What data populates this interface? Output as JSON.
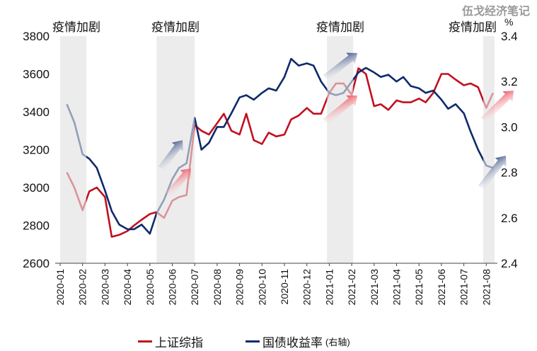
{
  "watermark": "伍戈经济笔记",
  "chart_data": {
    "type": "line",
    "title": "",
    "left_axis": {
      "ylim": [
        2600,
        3800
      ],
      "ticks": [
        2600,
        2800,
        3000,
        3200,
        3400,
        3600,
        3800
      ]
    },
    "right_axis": {
      "unit": "%",
      "ylim": [
        2.4,
        3.4
      ],
      "ticks": [
        "2.4",
        "2.6",
        "2.8",
        "3.0",
        "3.2",
        "3.4"
      ]
    },
    "x_ticks": [
      "2020-01",
      "2020-02",
      "2020-03",
      "2020-04",
      "2020-05",
      "2020-06",
      "2020-07",
      "2020-08",
      "2020-09",
      "2020-10",
      "2020-11",
      "2020-12",
      "2021-01",
      "2021-02",
      "2021-03",
      "2021-04",
      "2021-05",
      "2021-06",
      "2021-07",
      "2021-08"
    ],
    "grid": false,
    "legend_position": "bottom",
    "shaded_periods": [
      {
        "label": "疫情加剧",
        "start": "2020-01-01",
        "end": "2020-02-06"
      },
      {
        "label": "疫情加剧",
        "start": "2020-05-10",
        "end": "2020-07-01"
      },
      {
        "label": "疫情加剧",
        "start": "2020-12-28",
        "end": "2021-02-03"
      },
      {
        "label": "疫情加剧",
        "start": "2021-07-27",
        "end": "2021-08-12"
      }
    ],
    "x": [
      "2020-01-10",
      "2020-01-20",
      "2020-02-01",
      "2020-02-10",
      "2020-02-20",
      "2020-03-01",
      "2020-03-10",
      "2020-03-20",
      "2020-04-01",
      "2020-04-10",
      "2020-04-20",
      "2020-05-01",
      "2020-05-10",
      "2020-05-20",
      "2020-06-01",
      "2020-06-10",
      "2020-06-20",
      "2020-07-01",
      "2020-07-10",
      "2020-07-20",
      "2020-08-01",
      "2020-08-10",
      "2020-08-20",
      "2020-09-01",
      "2020-09-10",
      "2020-09-20",
      "2020-10-01",
      "2020-10-10",
      "2020-10-20",
      "2020-11-01",
      "2020-11-10",
      "2020-11-20",
      "2020-12-01",
      "2020-12-10",
      "2020-12-20",
      "2021-01-01",
      "2021-01-10",
      "2021-01-20",
      "2021-02-01",
      "2021-02-10",
      "2021-02-20",
      "2021-03-01",
      "2021-03-10",
      "2021-03-20",
      "2021-04-01",
      "2021-04-10",
      "2021-04-20",
      "2021-05-01",
      "2021-05-10",
      "2021-05-20",
      "2021-06-01",
      "2021-06-10",
      "2021-06-20",
      "2021-07-01",
      "2021-07-10",
      "2021-07-20",
      "2021-08-01",
      "2021-08-10"
    ],
    "series": [
      {
        "name": "上证综指",
        "axis": "left",
        "color": "#c0111f",
        "values": [
          3080,
          3000,
          2880,
          2980,
          3000,
          2950,
          2740,
          2750,
          2770,
          2800,
          2830,
          2860,
          2870,
          2840,
          2930,
          2950,
          2960,
          3330,
          3300,
          3280,
          3340,
          3390,
          3300,
          3280,
          3390,
          3250,
          3230,
          3290,
          3270,
          3280,
          3360,
          3380,
          3420,
          3390,
          3390,
          3500,
          3550,
          3550,
          3490,
          3630,
          3600,
          3430,
          3440,
          3410,
          3460,
          3450,
          3450,
          3470,
          3450,
          3500,
          3600,
          3600,
          3570,
          3540,
          3550,
          3530,
          3420,
          3500
        ]
      },
      {
        "name": "国债收益率",
        "axis": "right",
        "color": "#0e2a6b",
        "values": [
          3.1,
          3.02,
          2.88,
          2.86,
          2.82,
          2.72,
          2.63,
          2.57,
          2.55,
          2.55,
          2.57,
          2.53,
          2.62,
          2.68,
          2.77,
          2.82,
          2.84,
          3.04,
          2.9,
          2.93,
          3.0,
          3.0,
          3.06,
          3.13,
          3.14,
          3.12,
          3.15,
          3.17,
          3.16,
          3.22,
          3.3,
          3.27,
          3.28,
          3.27,
          3.2,
          3.15,
          3.14,
          3.15,
          3.2,
          3.24,
          3.26,
          3.24,
          3.22,
          3.23,
          3.2,
          3.22,
          3.18,
          3.17,
          3.15,
          3.16,
          3.12,
          3.08,
          3.1,
          3.06,
          2.98,
          2.9,
          2.83,
          2.82
        ]
      }
    ]
  },
  "legend": {
    "items": [
      {
        "label": "上证综指",
        "color": "#c0111f"
      },
      {
        "label": "国债收益率",
        "suffix": "(右轴)",
        "color": "#0e2a6b"
      }
    ]
  }
}
